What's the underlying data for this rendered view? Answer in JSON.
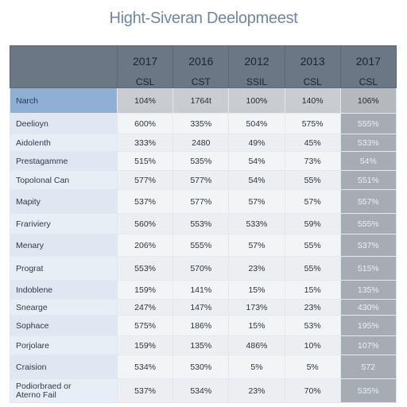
{
  "title": "Hight-Siveran Deelopmeest",
  "columns": [
    {
      "year": "2017",
      "sub": "CSL"
    },
    {
      "year": "2016",
      "sub": "CST"
    },
    {
      "year": "2012",
      "sub": "SSIL"
    },
    {
      "year": "2013",
      "sub": "CSL"
    },
    {
      "year": "2017",
      "sub": "CSL"
    }
  ],
  "highlight_row": {
    "label": "Narch",
    "values": [
      "104%",
      "1764t",
      "100%",
      "140%",
      "106%"
    ]
  },
  "rows": [
    {
      "label": "Deelioyn",
      "values": [
        "600%",
        "335%",
        "504%",
        "575%",
        "555%"
      ]
    },
    {
      "label": "Aidolenth",
      "values": [
        "333%",
        "2480",
        "49%",
        "45%",
        "533%"
      ]
    },
    {
      "label": "Prestagamme",
      "values": [
        "515%",
        "535%",
        "54%",
        "73%",
        "54%"
      ]
    },
    {
      "label": "Topolonal Can",
      "values": [
        "577%",
        "577%",
        "54%",
        "55%",
        "551%"
      ]
    },
    {
      "label": "Mapity",
      "values": [
        "537%",
        "577%",
        "57%",
        "57%",
        "557%"
      ]
    },
    {
      "label": "Frariviery",
      "values": [
        "560%",
        "553%",
        "533%",
        "59%",
        "555%"
      ]
    },
    {
      "label": "Menary",
      "values": [
        "206%",
        "555%",
        "57%",
        "55%",
        "537%"
      ]
    },
    {
      "label": "Prograt",
      "values": [
        "553%",
        "570%",
        "23%",
        "55%",
        "515%"
      ]
    },
    {
      "label": "Indoblene",
      "values": [
        "159%",
        "141%",
        "15%",
        "15%",
        "135%"
      ]
    },
    {
      "label": "Snearge",
      "values": [
        "247%",
        "147%",
        "173%",
        "23%",
        "430%"
      ]
    },
    {
      "label": "Sophace",
      "values": [
        "575%",
        "186%",
        "15%",
        "53%",
        "195%"
      ]
    },
    {
      "label": "Porjolare",
      "values": [
        "159%",
        "135%",
        "486%",
        "10%",
        "107%"
      ]
    },
    {
      "label": "Craision",
      "values": [
        "534%",
        "530%",
        "5%",
        "5%",
        "572"
      ]
    },
    {
      "label_line1": "Podiorbraed or",
      "label_line2": "Aterno Fail",
      "values": [
        "537%",
        "534%",
        "23%",
        "70%",
        "535%"
      ]
    }
  ]
}
